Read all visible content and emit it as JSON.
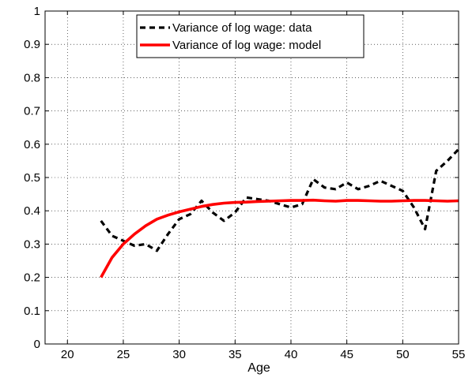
{
  "chart_data": {
    "type": "line",
    "title": "",
    "xlabel": "Age",
    "ylabel": "",
    "xlim": [
      18,
      55
    ],
    "ylim": [
      0,
      1
    ],
    "xticks": [
      20,
      25,
      30,
      35,
      40,
      45,
      50,
      55
    ],
    "yticks": [
      0,
      0.1,
      0.2,
      0.3,
      0.4,
      0.5,
      0.6,
      0.7,
      0.8,
      0.9,
      1
    ],
    "xtick_labels": [
      "20",
      "25",
      "30",
      "35",
      "40",
      "45",
      "50",
      "55"
    ],
    "ytick_labels": [
      "0",
      "0.1",
      "0.2",
      "0.3",
      "0.4",
      "0.5",
      "0.6",
      "0.7",
      "0.8",
      "0.9",
      "1"
    ],
    "grid": true,
    "legend_position": "top-center",
    "series": [
      {
        "name": "Variance of log wage: data",
        "color": "#000000",
        "style": "dashed",
        "x": [
          23,
          24,
          25,
          26,
          27,
          28,
          29,
          30,
          31,
          32,
          33,
          34,
          35,
          36,
          37,
          38,
          39,
          40,
          41,
          42,
          43,
          44,
          45,
          46,
          47,
          48,
          49,
          50,
          51,
          52,
          53,
          54,
          55
        ],
        "y": [
          0.37,
          0.325,
          0.31,
          0.295,
          0.3,
          0.28,
          0.33,
          0.375,
          0.39,
          0.43,
          0.395,
          0.37,
          0.395,
          0.44,
          0.435,
          0.43,
          0.42,
          0.41,
          0.42,
          0.495,
          0.47,
          0.465,
          0.485,
          0.465,
          0.475,
          0.49,
          0.475,
          0.46,
          0.41,
          0.345,
          0.52,
          0.55,
          0.585
        ]
      },
      {
        "name": "Variance of log wage: model",
        "color": "#ff0000",
        "style": "solid",
        "x": [
          23,
          24,
          25,
          26,
          27,
          28,
          29,
          30,
          31,
          32,
          33,
          34,
          35,
          36,
          37,
          38,
          39,
          40,
          41,
          42,
          43,
          44,
          45,
          46,
          47,
          48,
          49,
          50,
          51,
          52,
          53,
          54,
          55
        ],
        "y": [
          0.2,
          0.26,
          0.3,
          0.33,
          0.355,
          0.375,
          0.387,
          0.397,
          0.405,
          0.413,
          0.419,
          0.423,
          0.425,
          0.426,
          0.428,
          0.429,
          0.43,
          0.431,
          0.431,
          0.432,
          0.43,
          0.429,
          0.431,
          0.431,
          0.43,
          0.429,
          0.429,
          0.43,
          0.431,
          0.431,
          0.43,
          0.429,
          0.43
        ]
      }
    ]
  }
}
